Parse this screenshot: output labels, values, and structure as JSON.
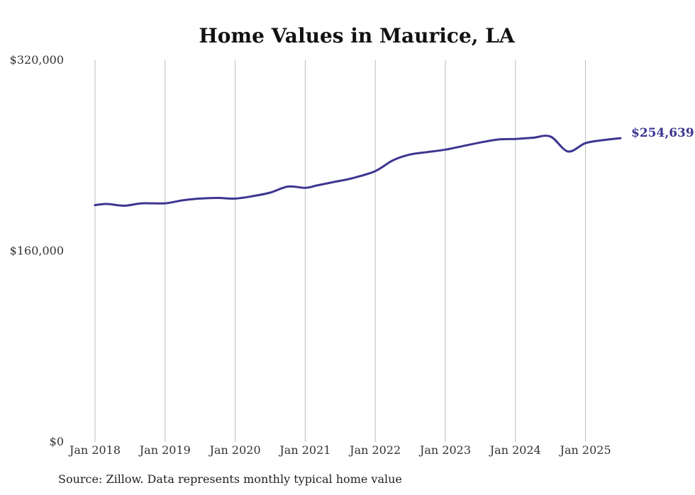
{
  "source_note": "Source: Zillow. Data represents monthly typical home value",
  "colors": {
    "line": "#3d3590",
    "grid": "#bbbbbb",
    "text": "#333333"
  },
  "chart_data": {
    "type": "line",
    "title": "Home Values in Maurice, LA",
    "xlabel": "",
    "ylabel": "",
    "ylim": [
      0,
      320000
    ],
    "yticks": [
      0,
      160000,
      320000
    ],
    "ytick_labels": [
      "$0",
      "$160,000",
      "$320,000"
    ],
    "xlim": [
      "2018-01",
      "2025-07"
    ],
    "xticks": [
      "2018-01",
      "2019-01",
      "2020-01",
      "2021-01",
      "2022-01",
      "2023-01",
      "2024-01",
      "2025-01"
    ],
    "xtick_labels": [
      "Jan 2018",
      "Jan 2019",
      "Jan 2020",
      "Jan 2021",
      "Jan 2022",
      "Jan 2023",
      "Jan 2024",
      "Jan 2025"
    ],
    "grid": "vertical",
    "end_label": "$254,639",
    "series": [
      {
        "x": [
          "2018-01",
          "2018-03",
          "2018-06",
          "2018-09",
          "2019-01",
          "2019-04",
          "2019-07",
          "2019-10",
          "2020-01",
          "2020-04",
          "2020-07",
          "2020-10",
          "2021-01",
          "2021-03",
          "2021-06",
          "2021-09",
          "2022-01",
          "2022-04",
          "2022-07",
          "2022-10",
          "2023-01",
          "2023-04",
          "2023-07",
          "2023-10",
          "2024-01",
          "2024-04",
          "2024-07",
          "2024-10",
          "2025-01",
          "2025-04",
          "2025-07"
        ],
        "y": [
          198500,
          199500,
          198000,
          200000,
          200000,
          202500,
          204000,
          204500,
          204000,
          206000,
          209000,
          214000,
          213000,
          215000,
          218000,
          221000,
          227000,
          236000,
          241000,
          243000,
          245000,
          248000,
          251000,
          253500,
          254000,
          255000,
          256000,
          243500,
          250500,
          253000,
          254639
        ]
      }
    ]
  }
}
